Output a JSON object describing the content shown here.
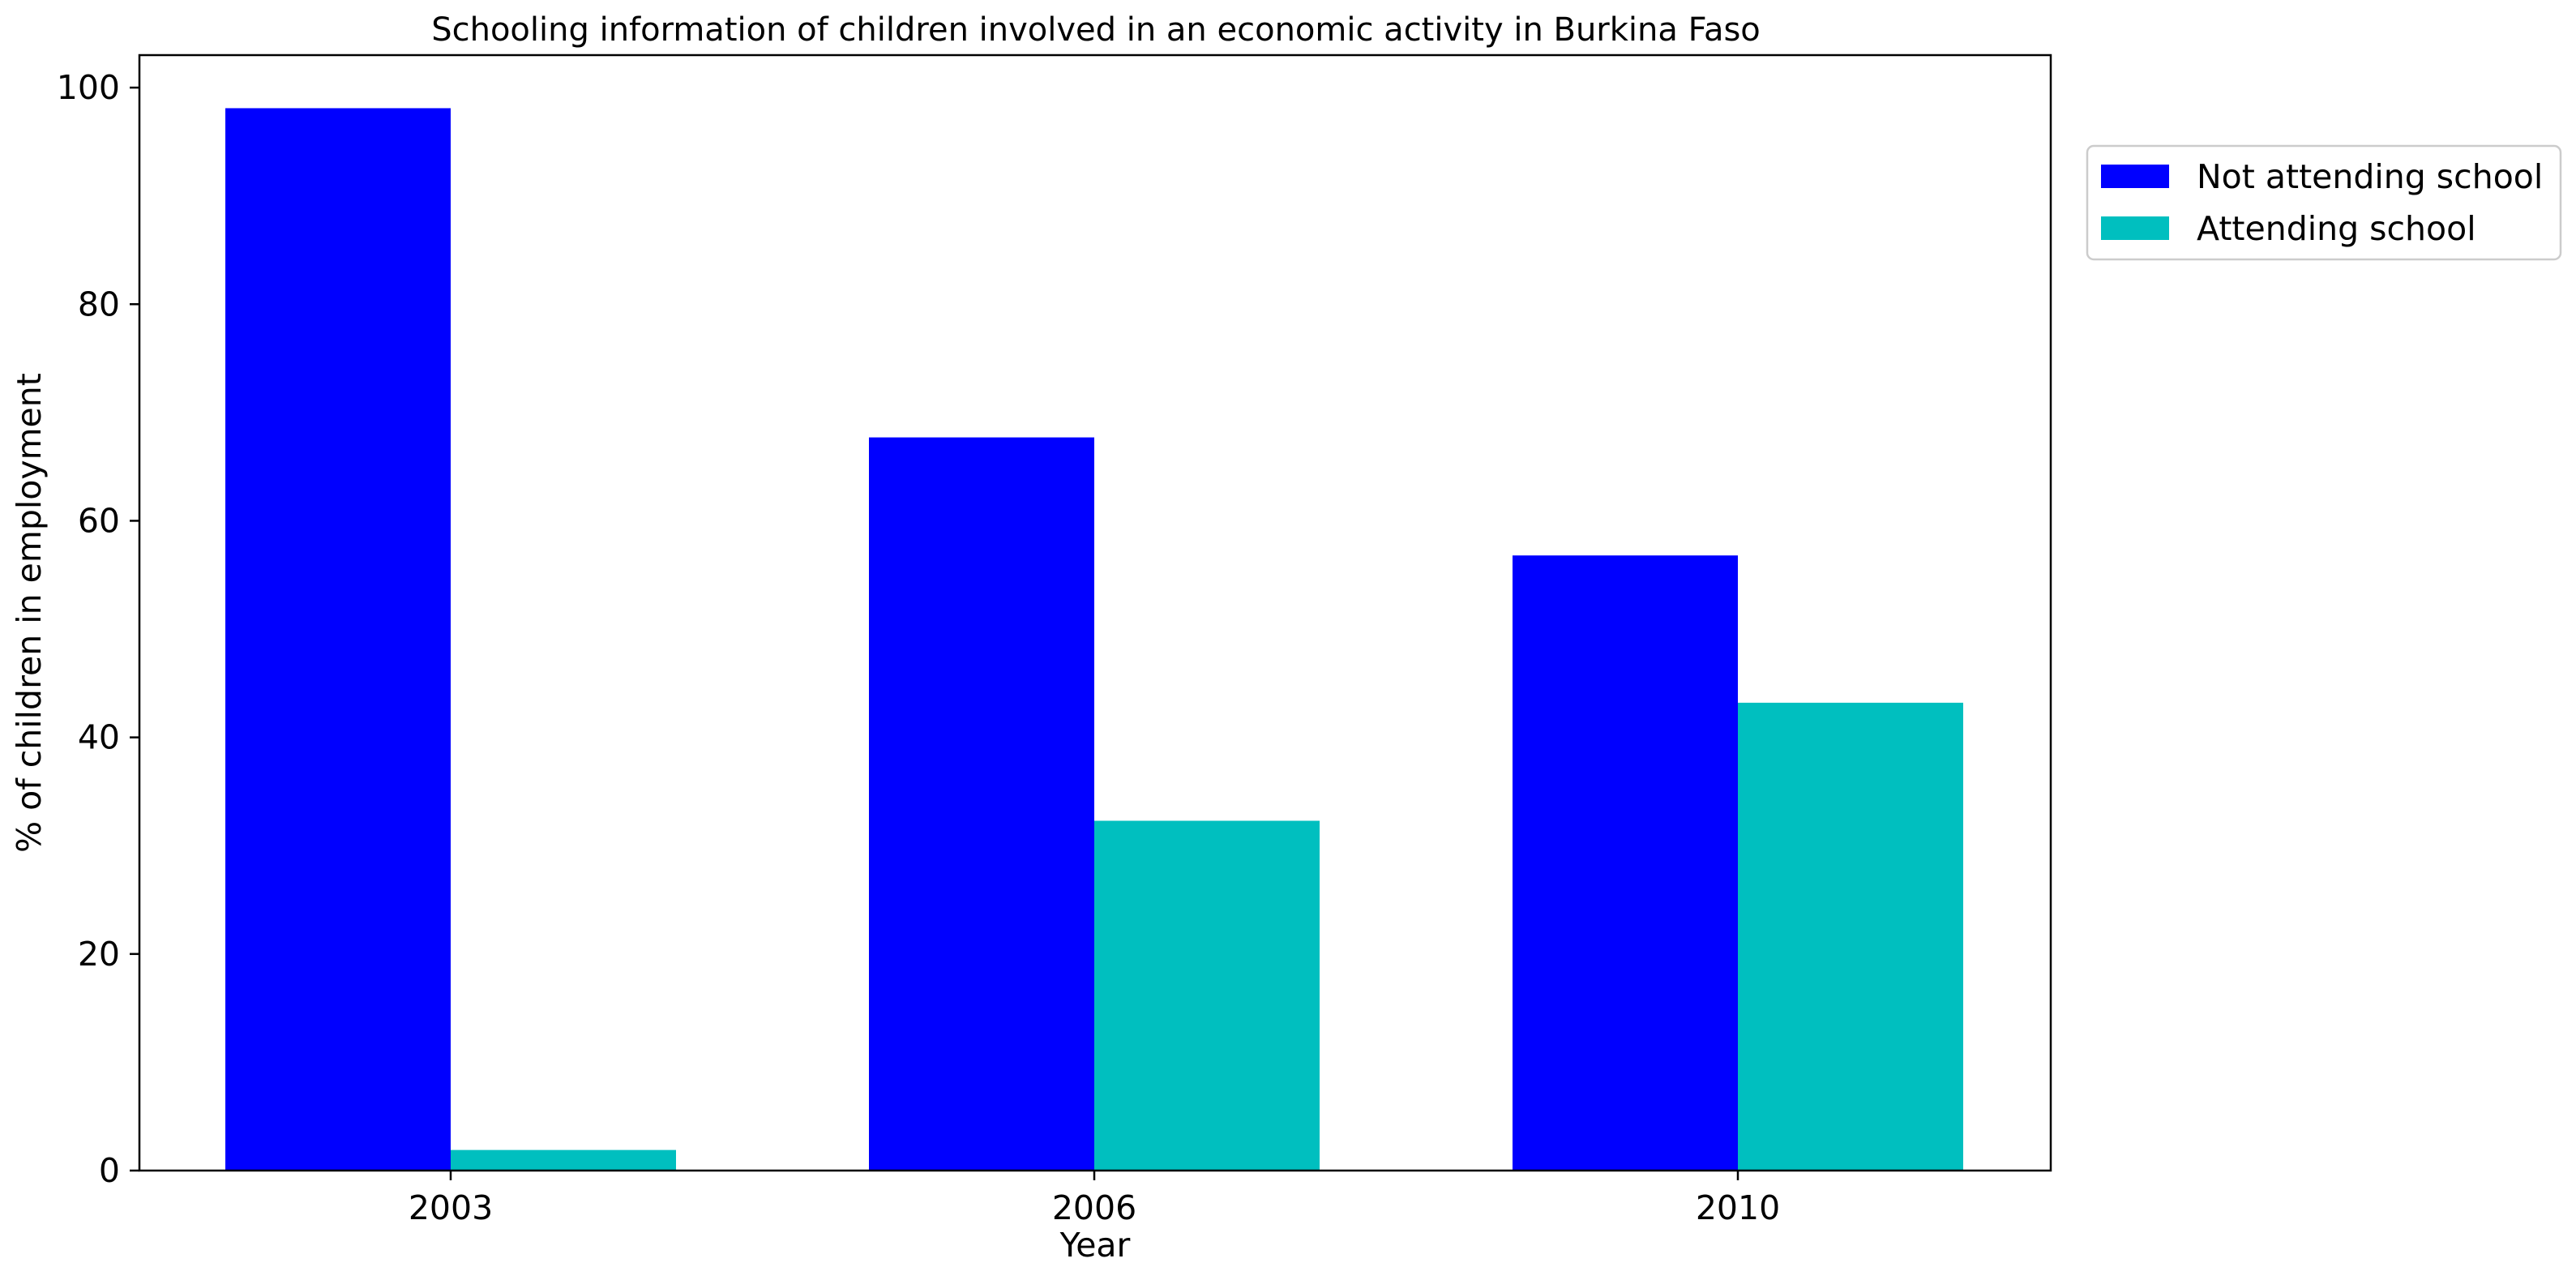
{
  "chart_data": {
    "type": "bar",
    "title": "Schooling information of children involved in an economic activity in Burkina Faso",
    "xlabel": "Year",
    "ylabel": "% of children in employment",
    "categories": [
      "2003",
      "2006",
      "2010"
    ],
    "series": [
      {
        "name": "Not attending school",
        "values": [
          98.1,
          67.7,
          56.8
        ],
        "color": "#0000ff"
      },
      {
        "name": "Attending school",
        "values": [
          1.9,
          32.3,
          43.2
        ],
        "color": "#00bfbf"
      }
    ],
    "ylim": [
      0,
      103
    ],
    "yticks": [
      0,
      20,
      40,
      60,
      80,
      100
    ],
    "grid": false,
    "legend_position": "outside-top-right"
  }
}
